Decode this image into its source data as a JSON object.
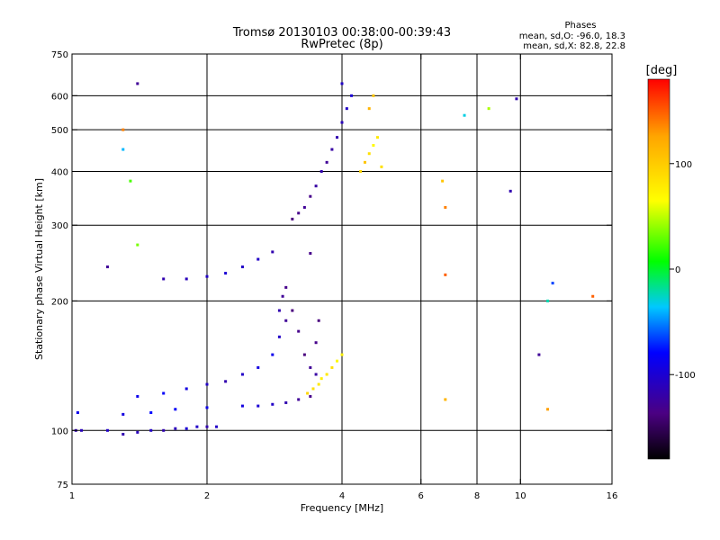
{
  "chart_data": {
    "type": "scatter",
    "title": "Tromsø 20130103 00:38:00-00:39:43",
    "subtitle": "RwPretec (8p)",
    "xlabel": "Frequency [MHz]",
    "ylabel": "Stationary phase Virtual Height [km]",
    "xscale": "log",
    "yscale": "log",
    "xlim": [
      1,
      16
    ],
    "ylim": [
      75,
      750
    ],
    "xticks": [
      1,
      2,
      4,
      6,
      8,
      10,
      16
    ],
    "xtick_labels": [
      "1",
      "2",
      "4",
      "6",
      "8",
      "10",
      "16"
    ],
    "yticks": [
      75,
      100,
      200,
      300,
      400,
      500,
      600,
      750
    ],
    "ytick_labels": [
      "75",
      "100",
      "200",
      "300",
      "400",
      "500",
      "600",
      "750"
    ],
    "x_gridlines": [
      2,
      4,
      6,
      8,
      10
    ],
    "y_gridlines": [
      100,
      200,
      300,
      400,
      500,
      600
    ],
    "grid": true,
    "phase_info": {
      "heading": "Phases",
      "line1": "mean, sd,O: -96.0, 18.3",
      "line2": "mean, sd,X:  82.8, 22.8"
    },
    "colorbar": {
      "label": "[deg]",
      "range": [
        -180,
        180
      ],
      "ticks": [
        100,
        0,
        -100
      ],
      "tick_labels": [
        "100",
        "0",
        "-100"
      ],
      "colors": [
        "#000000",
        "#4b0082",
        "#0000ff",
        "#00c8ff",
        "#00ff00",
        "#ffff00",
        "#ffa500",
        "#ff0000"
      ]
    },
    "series": [
      {
        "points": [
          {
            "x": 1.02,
            "y": 100,
            "phase": -110
          },
          {
            "x": 1.05,
            "y": 100,
            "phase": -105
          },
          {
            "x": 1.2,
            "y": 100,
            "phase": -100
          },
          {
            "x": 1.3,
            "y": 98,
            "phase": -110
          },
          {
            "x": 1.4,
            "y": 99,
            "phase": -105
          },
          {
            "x": 1.5,
            "y": 100,
            "phase": -100
          },
          {
            "x": 1.6,
            "y": 100,
            "phase": -110
          },
          {
            "x": 1.7,
            "y": 101,
            "phase": -105
          },
          {
            "x": 1.8,
            "y": 101,
            "phase": -95
          },
          {
            "x": 1.9,
            "y": 102,
            "phase": -100
          },
          {
            "x": 2.0,
            "y": 102,
            "phase": -110
          },
          {
            "x": 2.1,
            "y": 102,
            "phase": -100
          },
          {
            "x": 1.03,
            "y": 110,
            "phase": -85
          },
          {
            "x": 1.3,
            "y": 109,
            "phase": -90
          },
          {
            "x": 1.5,
            "y": 110,
            "phase": -75
          },
          {
            "x": 1.7,
            "y": 112,
            "phase": -80
          },
          {
            "x": 2.0,
            "y": 113,
            "phase": -85
          },
          {
            "x": 2.4,
            "y": 114,
            "phase": -90
          },
          {
            "x": 2.6,
            "y": 114,
            "phase": -95
          },
          {
            "x": 2.8,
            "y": 115,
            "phase": -100
          },
          {
            "x": 3.0,
            "y": 116,
            "phase": -110
          },
          {
            "x": 3.2,
            "y": 118,
            "phase": -120
          },
          {
            "x": 3.4,
            "y": 120,
            "phase": -125
          },
          {
            "x": 1.4,
            "y": 120,
            "phase": -85
          },
          {
            "x": 1.6,
            "y": 122,
            "phase": -80
          },
          {
            "x": 1.8,
            "y": 125,
            "phase": -90
          },
          {
            "x": 2.0,
            "y": 128,
            "phase": -100
          },
          {
            "x": 2.2,
            "y": 130,
            "phase": -110
          },
          {
            "x": 2.4,
            "y": 135,
            "phase": -100
          },
          {
            "x": 2.6,
            "y": 140,
            "phase": -90
          },
          {
            "x": 2.8,
            "y": 150,
            "phase": -85
          },
          {
            "x": 2.9,
            "y": 165,
            "phase": -100
          },
          {
            "x": 3.0,
            "y": 180,
            "phase": -120
          },
          {
            "x": 3.1,
            "y": 190,
            "phase": -130
          },
          {
            "x": 3.2,
            "y": 170,
            "phase": -125
          },
          {
            "x": 3.3,
            "y": 150,
            "phase": -130
          },
          {
            "x": 3.4,
            "y": 140,
            "phase": -120
          },
          {
            "x": 3.5,
            "y": 135,
            "phase": -115
          },
          {
            "x": 3.5,
            "y": 160,
            "phase": -125
          },
          {
            "x": 3.55,
            "y": 180,
            "phase": -130
          },
          {
            "x": 2.9,
            "y": 190,
            "phase": -110
          },
          {
            "x": 2.95,
            "y": 205,
            "phase": -120
          },
          {
            "x": 3.0,
            "y": 215,
            "phase": -125
          },
          {
            "x": 1.6,
            "y": 225,
            "phase": -110
          },
          {
            "x": 1.8,
            "y": 225,
            "phase": -105
          },
          {
            "x": 2.0,
            "y": 228,
            "phase": -100
          },
          {
            "x": 2.2,
            "y": 232,
            "phase": -95
          },
          {
            "x": 2.4,
            "y": 240,
            "phase": -100
          },
          {
            "x": 2.6,
            "y": 250,
            "phase": -100
          },
          {
            "x": 2.8,
            "y": 260,
            "phase": -110
          },
          {
            "x": 3.4,
            "y": 258,
            "phase": -125
          },
          {
            "x": 3.1,
            "y": 310,
            "phase": -130
          },
          {
            "x": 3.2,
            "y": 320,
            "phase": -125
          },
          {
            "x": 3.3,
            "y": 330,
            "phase": -120
          },
          {
            "x": 3.4,
            "y": 350,
            "phase": -125
          },
          {
            "x": 3.5,
            "y": 370,
            "phase": -115
          },
          {
            "x": 3.6,
            "y": 400,
            "phase": -110
          },
          {
            "x": 3.7,
            "y": 420,
            "phase": -120
          },
          {
            "x": 3.8,
            "y": 450,
            "phase": -115
          },
          {
            "x": 3.9,
            "y": 480,
            "phase": -110
          },
          {
            "x": 4.0,
            "y": 520,
            "phase": -105
          },
          {
            "x": 4.1,
            "y": 560,
            "phase": -100
          },
          {
            "x": 4.2,
            "y": 600,
            "phase": -95
          },
          {
            "x": 3.35,
            "y": 122,
            "phase": 100
          },
          {
            "x": 3.45,
            "y": 125,
            "phase": 95
          },
          {
            "x": 3.55,
            "y": 128,
            "phase": 90
          },
          {
            "x": 3.6,
            "y": 132,
            "phase": 85
          },
          {
            "x": 3.7,
            "y": 135,
            "phase": 90
          },
          {
            "x": 3.8,
            "y": 140,
            "phase": 95
          },
          {
            "x": 3.9,
            "y": 145,
            "phase": 80
          },
          {
            "x": 4.0,
            "y": 150,
            "phase": 85
          },
          {
            "x": 4.4,
            "y": 400,
            "phase": 100
          },
          {
            "x": 4.5,
            "y": 420,
            "phase": 110
          },
          {
            "x": 4.6,
            "y": 440,
            "phase": 95
          },
          {
            "x": 4.7,
            "y": 460,
            "phase": 80
          },
          {
            "x": 4.8,
            "y": 480,
            "phase": 90
          },
          {
            "x": 4.6,
            "y": 560,
            "phase": 120
          },
          {
            "x": 4.7,
            "y": 600,
            "phase": 110
          },
          {
            "x": 4.9,
            "y": 410,
            "phase": 95
          },
          {
            "x": 1.3,
            "y": 500,
            "phase": 140
          },
          {
            "x": 1.3,
            "y": 450,
            "phase": -30
          },
          {
            "x": 1.35,
            "y": 380,
            "phase": 40
          },
          {
            "x": 1.2,
            "y": 240,
            "phase": -120
          },
          {
            "x": 1.4,
            "y": 640,
            "phase": -120
          },
          {
            "x": 1.4,
            "y": 270,
            "phase": 50
          },
          {
            "x": 6.7,
            "y": 380,
            "phase": 110
          },
          {
            "x": 6.8,
            "y": 330,
            "phase": 140
          },
          {
            "x": 6.8,
            "y": 230,
            "phase": 150
          },
          {
            "x": 7.5,
            "y": 540,
            "phase": -20
          },
          {
            "x": 8.5,
            "y": 560,
            "phase": 60
          },
          {
            "x": 9.8,
            "y": 590,
            "phase": -110
          },
          {
            "x": 9.5,
            "y": 360,
            "phase": -110
          },
          {
            "x": 11.5,
            "y": 200,
            "phase": -10
          },
          {
            "x": 11.8,
            "y": 220,
            "phase": -60
          },
          {
            "x": 14.5,
            "y": 205,
            "phase": 150
          },
          {
            "x": 11,
            "y": 150,
            "phase": -120
          },
          {
            "x": 11.5,
            "y": 112,
            "phase": 130
          },
          {
            "x": 6.8,
            "y": 118,
            "phase": 120
          },
          {
            "x": 4.0,
            "y": 640,
            "phase": -100
          }
        ]
      }
    ]
  }
}
